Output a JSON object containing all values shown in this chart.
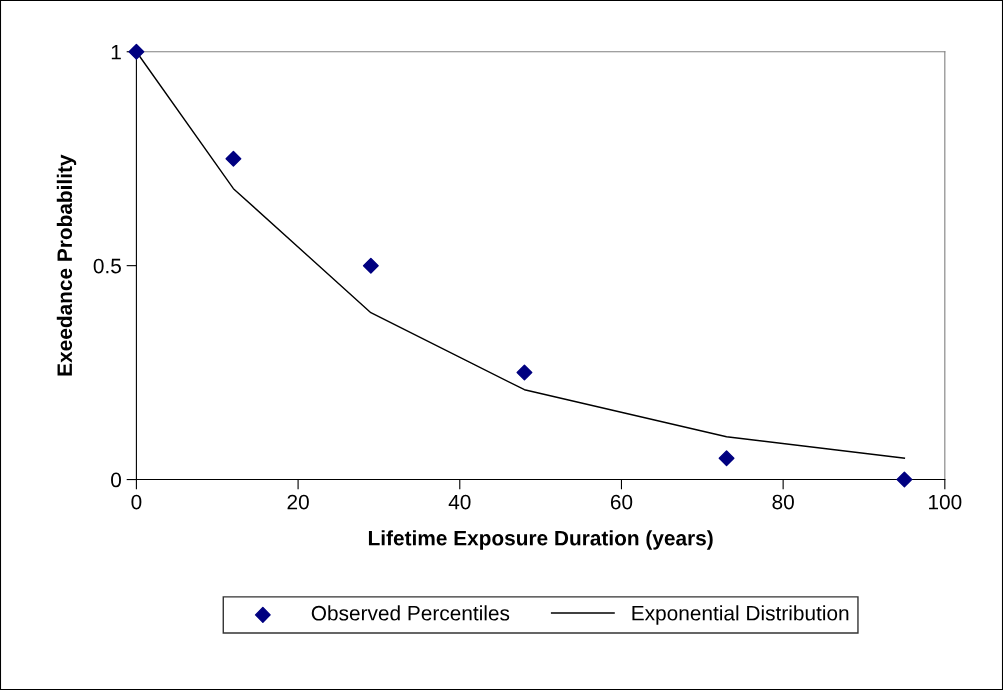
{
  "chart_data": {
    "type": "scatter",
    "xlabel": "Lifetime Exposure Duration (years)",
    "ylabel": "Exeedance Probability",
    "xlim": [
      0,
      100
    ],
    "xticks": [
      0,
      20,
      40,
      60,
      80,
      100
    ],
    "ylim": [
      0,
      1
    ],
    "yticks": [
      0,
      0.5,
      1
    ],
    "grid": false,
    "legend": "bottom",
    "series": [
      {
        "name": "Observed Percentiles",
        "marker": "diamond",
        "color": "#000080",
        "x": [
          0,
          12,
          29,
          48,
          73,
          95
        ],
        "values": [
          1,
          0.75,
          0.5,
          0.25,
          0.05,
          0
        ]
      },
      {
        "name": "Exponential Distribution",
        "type": "line",
        "marker": "none",
        "line_style": "solid",
        "color": "#000000",
        "x": [
          0,
          12,
          29,
          48,
          73,
          95
        ],
        "values": [
          1,
          0.68,
          0.39,
          0.21,
          0.1,
          0.05
        ]
      }
    ]
  }
}
